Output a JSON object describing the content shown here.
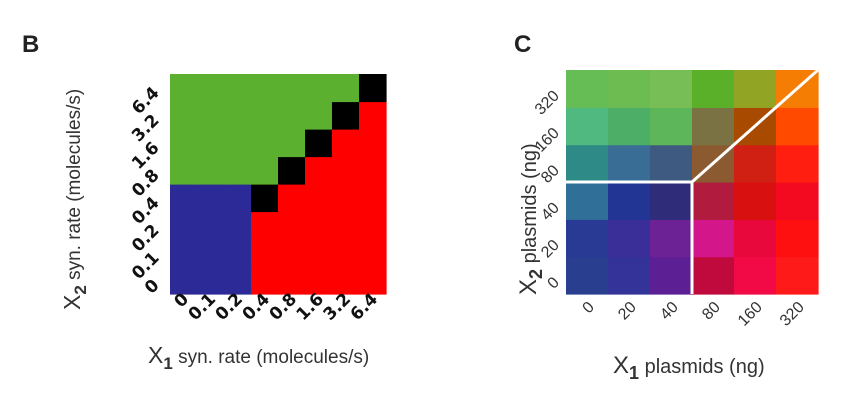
{
  "chart_data": [
    {
      "panel": "B",
      "type": "heatmap",
      "xlabel_prefix": "X",
      "xlabel_sub": "1",
      "xlabel_rest": " syn. rate (molecules/s)",
      "ylabel_prefix": "X",
      "ylabel_sub": "2",
      "ylabel_rest": " syn. rate (molecules/s)",
      "x_ticks": [
        "0",
        "0.1",
        "0.2",
        "0.4",
        "0.8",
        "1.6",
        "3.2",
        "6.4"
      ],
      "y_ticks": [
        "0",
        "0.1",
        "0.2",
        "0.4",
        "0.8",
        "1.6",
        "3.2",
        "6.4"
      ],
      "colors": {
        "green": "#5bb12f",
        "blue": "#2c2a96",
        "red": "#ff0000",
        "black": "#000000"
      },
      "cells": [
        [
          "blue",
          "blue",
          "blue",
          "red",
          "red",
          "red",
          "red",
          "red"
        ],
        [
          "blue",
          "blue",
          "blue",
          "red",
          "red",
          "red",
          "red",
          "red"
        ],
        [
          "blue",
          "blue",
          "blue",
          "red",
          "red",
          "red",
          "red",
          "red"
        ],
        [
          "blue",
          "blue",
          "blue",
          "black",
          "red",
          "red",
          "red",
          "red"
        ],
        [
          "green",
          "green",
          "green",
          "green",
          "black",
          "red",
          "red",
          "red"
        ],
        [
          "green",
          "green",
          "green",
          "green",
          "green",
          "black",
          "red",
          "red"
        ],
        [
          "green",
          "green",
          "green",
          "green",
          "green",
          "green",
          "black",
          "red"
        ],
        [
          "green",
          "green",
          "green",
          "green",
          "green",
          "green",
          "green",
          "black"
        ]
      ]
    },
    {
      "panel": "C",
      "type": "heatmap",
      "xlabel_prefix": "X",
      "xlabel_sub": "1",
      "xlabel_rest": " plasmids (ng)",
      "ylabel_prefix": "X",
      "ylabel_sub": "2",
      "ylabel_rest": " plasmids (ng)",
      "x_ticks": [
        "0",
        "20",
        "40",
        "80",
        "160",
        "320"
      ],
      "y_ticks": [
        "0",
        "20",
        "40",
        "80",
        "160",
        "320"
      ],
      "cells": [
        [
          "#2a3e90",
          "#33339a",
          "#5c1f94",
          "#c00a3e",
          "#f20a46",
          "#ff1a1a"
        ],
        [
          "#293a94",
          "#3a2f98",
          "#6c2194",
          "#d3168a",
          "#e8083c",
          "#ff1010"
        ],
        [
          "#2f6f98",
          "#223494",
          "#2f2c7a",
          "#b11b3e",
          "#d81010",
          "#f30a20"
        ],
        [
          "#2e8a86",
          "#3a6d96",
          "#3f5a80",
          "#8c5a30",
          "#d02014",
          "#ff1e10"
        ],
        [
          "#4fb980",
          "#4dae68",
          "#5db75a",
          "#7a7242",
          "#a84a00",
          "#ff4a00"
        ],
        [
          "#66bc55",
          "#6cbc52",
          "#78be56",
          "#5ab028",
          "#92a424",
          "#f57d04"
        ]
      ],
      "boundary_color": "#ffffff"
    }
  ]
}
